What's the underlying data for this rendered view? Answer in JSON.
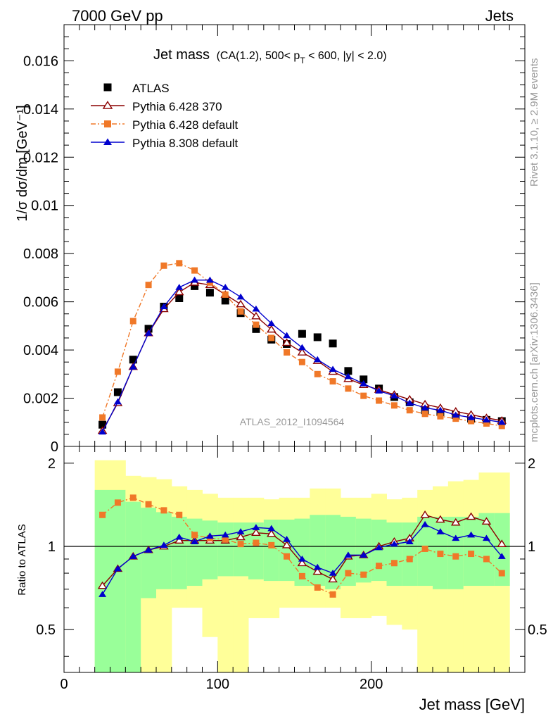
{
  "header": {
    "energy_label": "7000 GeV pp",
    "category_label": "Jets"
  },
  "side_labels": {
    "rivet": "Rivet 3.1.10, ≥ 2.9M events",
    "mcplots": "mcplots.cern.ch [arXiv:1306.3436]"
  },
  "analysis_label": "ATLAS_2012_I1094564",
  "chart_data": [
    {
      "type": "scatter",
      "panel": "main",
      "title": "Jet mass",
      "title_detail": "(CA(1.2), 500< p_T < 600, |y| < 2.0)",
      "title_detail_parts": {
        "pre": "(CA(1.2), 500< p",
        "sub": "T",
        "post": " < 600, |y| < 2.0)"
      },
      "ylabel": "1/σ dσ/dm [GeV⁻¹]",
      "xlabel": "Jet mass [GeV]",
      "xlim": [
        0,
        300
      ],
      "ylim": [
        0,
        0.0175
      ],
      "x_ticks": [
        "0",
        "100",
        "200"
      ],
      "y_ticks": [
        "0",
        "0.002",
        "0.004",
        "0.006",
        "0.008",
        "0.01",
        "0.012",
        "0.014",
        "0.016"
      ],
      "legend_position": "top-left",
      "x": [
        25,
        35,
        45,
        55,
        65,
        75,
        85,
        95,
        105,
        115,
        125,
        135,
        145,
        155,
        165,
        175,
        185,
        195,
        205,
        215,
        225,
        235,
        245,
        255,
        265,
        275,
        285
      ],
      "series": [
        {
          "name": "ATLAS",
          "color": "#000000",
          "marker": "square",
          "line": "none",
          "values": [
            0.0009,
            0.00225,
            0.0036,
            0.00488,
            0.0058,
            0.00615,
            0.00665,
            0.00638,
            0.00605,
            0.00553,
            0.00487,
            0.00443,
            0.00425,
            0.00467,
            0.00453,
            0.00427,
            0.00313,
            0.00278,
            0.0024,
            0.00205,
            0.00183,
            0.0015,
            0.00142,
            0.0013,
            0.00115,
            0.0011,
            0.00105
          ]
        },
        {
          "name": "Pythia 6.428 370",
          "color": "#8b0000",
          "marker": "open-triangle",
          "line": "solid",
          "values": [
            0.00065,
            0.0018,
            0.0033,
            0.0047,
            0.0057,
            0.0064,
            0.0068,
            0.0067,
            0.0063,
            0.0059,
            0.0054,
            0.00485,
            0.0043,
            0.0039,
            0.00355,
            0.0031,
            0.0028,
            0.00255,
            0.00235,
            0.00215,
            0.00195,
            0.00175,
            0.0016,
            0.00145,
            0.00132,
            0.00118,
            0.00107
          ]
        },
        {
          "name": "Pythia 6.428 default",
          "color": "#f07828",
          "marker": "square",
          "line": "dash-dot",
          "values": [
            0.0012,
            0.0031,
            0.0052,
            0.0067,
            0.0075,
            0.0076,
            0.0073,
            0.0068,
            0.0063,
            0.0056,
            0.00505,
            0.0045,
            0.0039,
            0.0035,
            0.003,
            0.0027,
            0.0024,
            0.0021,
            0.0019,
            0.0017,
            0.0015,
            0.00135,
            0.00125,
            0.00115,
            0.00105,
            0.00095,
            0.00085
          ]
        },
        {
          "name": "Pythia 8.308 default",
          "color": "#0000cd",
          "marker": "triangle",
          "line": "solid",
          "values": [
            0.0006,
            0.00185,
            0.0033,
            0.0047,
            0.0058,
            0.0066,
            0.0069,
            0.0069,
            0.0066,
            0.0062,
            0.0057,
            0.0051,
            0.0046,
            0.0041,
            0.0036,
            0.0032,
            0.0029,
            0.0026,
            0.0023,
            0.0021,
            0.0018,
            0.0016,
            0.0015,
            0.0013,
            0.0012,
            0.0011,
            0.001
          ]
        }
      ]
    },
    {
      "type": "scatter",
      "panel": "ratio",
      "ylabel": "Ratio to ATLAS",
      "xlabel": "Jet mass [GeV]",
      "xlim": [
        0,
        300
      ],
      "ylim": [
        0.35,
        2.3
      ],
      "y_ticks": [
        "0.5",
        "1",
        "2"
      ],
      "reference": 1,
      "x": [
        25,
        35,
        45,
        55,
        65,
        75,
        85,
        95,
        105,
        115,
        125,
        135,
        145,
        155,
        165,
        175,
        185,
        195,
        205,
        215,
        225,
        235,
        245,
        255,
        265,
        275,
        285
      ],
      "bands": {
        "edges": [
          20,
          30,
          40,
          50,
          60,
          70,
          80,
          90,
          100,
          110,
          120,
          130,
          140,
          150,
          160,
          170,
          180,
          190,
          200,
          210,
          220,
          230,
          240,
          250,
          260,
          270,
          280,
          290
        ],
        "inner_color": "#99ff99",
        "outer_color": "#ffff99",
        "inner_lo": [
          0.35,
          0.35,
          0.35,
          0.65,
          0.7,
          0.7,
          0.72,
          0.76,
          0.78,
          0.78,
          0.76,
          0.75,
          0.75,
          0.72,
          0.72,
          0.7,
          0.72,
          0.74,
          0.75,
          0.72,
          0.72,
          0.72,
          0.7,
          0.7,
          0.72,
          0.72,
          0.72
        ],
        "inner_hi": [
          1.6,
          1.6,
          1.45,
          1.38,
          1.33,
          1.28,
          1.26,
          1.24,
          1.22,
          1.22,
          1.22,
          1.25,
          1.25,
          1.26,
          1.3,
          1.3,
          1.28,
          1.26,
          1.25,
          1.22,
          1.22,
          1.28,
          1.28,
          1.28,
          1.28,
          1.32,
          1.32
        ],
        "outer_lo": [
          0.35,
          0.35,
          0.35,
          0.35,
          0.35,
          0.6,
          0.6,
          0.47,
          0.35,
          0.35,
          0.55,
          0.55,
          0.6,
          0.6,
          0.6,
          0.6,
          0.55,
          0.55,
          0.56,
          0.52,
          0.5,
          0.35,
          0.35,
          0.35,
          0.35,
          0.35,
          0.35
        ],
        "outer_hi": [
          2.05,
          2.05,
          1.8,
          1.78,
          1.75,
          1.65,
          1.6,
          1.55,
          1.5,
          1.5,
          1.5,
          1.48,
          1.5,
          1.5,
          1.62,
          1.62,
          1.5,
          1.5,
          1.55,
          1.48,
          1.5,
          1.6,
          1.65,
          1.72,
          1.74,
          1.85,
          1.85
        ]
      },
      "series": [
        {
          "name": "Pythia 6.428 370",
          "color": "#8b0000",
          "marker": "open-triangle",
          "line": "solid",
          "values": [
            0.72,
            0.83,
            0.92,
            0.97,
            1.0,
            1.05,
            1.05,
            1.05,
            1.05,
            1.08,
            1.12,
            1.11,
            1.01,
            0.87,
            0.81,
            0.76,
            0.92,
            0.93,
            1.0,
            1.04,
            1.07,
            1.3,
            1.25,
            1.22,
            1.28,
            1.23,
            1.02
          ]
        },
        {
          "name": "Pythia 6.428 default",
          "color": "#f07828",
          "marker": "square",
          "line": "dash-dot",
          "values": [
            1.3,
            1.44,
            1.5,
            1.42,
            1.35,
            1.3,
            1.1,
            1.07,
            1.06,
            1.02,
            1.03,
            1.01,
            0.92,
            0.78,
            0.71,
            0.67,
            0.8,
            0.79,
            0.85,
            0.87,
            0.9,
            0.98,
            0.94,
            0.92,
            0.94,
            0.9,
            0.8
          ]
        },
        {
          "name": "Pythia 8.308 default",
          "color": "#0000cd",
          "marker": "triangle",
          "line": "solid",
          "values": [
            0.67,
            0.83,
            0.92,
            0.97,
            1.01,
            1.08,
            1.04,
            1.09,
            1.1,
            1.13,
            1.17,
            1.16,
            1.06,
            0.9,
            0.84,
            0.8,
            0.93,
            0.93,
            0.99,
            1.02,
            1.04,
            1.2,
            1.13,
            1.07,
            1.1,
            1.07,
            0.92
          ]
        }
      ]
    }
  ]
}
